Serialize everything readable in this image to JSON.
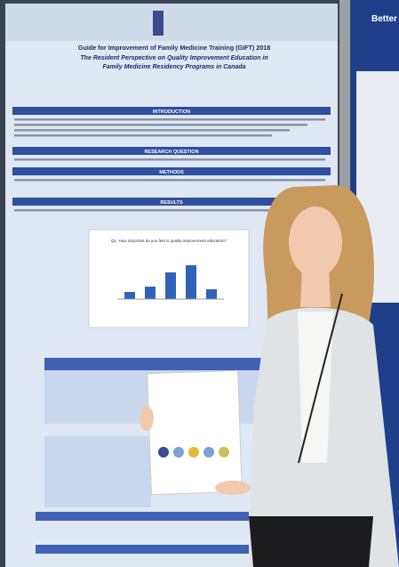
{
  "poster": {
    "title": "Guide for Improvement of Family Medicine Training (GIFT) 2018",
    "subtitle_line_1": "The Resident Perspective on Quality Improvement Education in",
    "subtitle_line_2": "Family Medicine Residency Programs in Canada",
    "sections": [
      "INTRODUCTION",
      "RESEARCH QUESTION",
      "METHODS",
      "RESULTS"
    ],
    "chart_title": "Q1. How important do you feel is quality improvement education?"
  },
  "side_poster": {
    "title": "Better"
  }
}
